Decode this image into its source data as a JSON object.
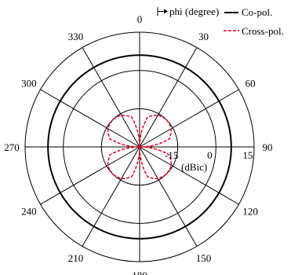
{
  "chart_data": {
    "type": "polar",
    "angle_unit_label": "phi (degree)",
    "radial_unit_label": "(dBic)",
    "radial_ticks": [
      "-15",
      "0",
      "15"
    ],
    "rlim": [
      -30,
      15
    ],
    "angle_ticks": [
      0,
      30,
      60,
      90,
      120,
      150,
      180,
      210,
      240,
      270,
      300,
      330
    ],
    "direction": "clockwise",
    "zero_at": "top",
    "grid": true,
    "legend_position": "top-right",
    "series": [
      {
        "name": "Co-pol.",
        "color": "#000000",
        "line_style": "solid",
        "phi": [
          0,
          30,
          60,
          90,
          120,
          150,
          180,
          210,
          240,
          270,
          300,
          330,
          360
        ],
        "gain": [
          6,
          6,
          6,
          6,
          6,
          6,
          6,
          6,
          6,
          6,
          6,
          6,
          6
        ]
      },
      {
        "name": "Cross-pol.",
        "color": "#e8001c",
        "line_style": "dashed",
        "phi": [
          0,
          15,
          30,
          45,
          60,
          75,
          90,
          105,
          120,
          135,
          150,
          165,
          180,
          195,
          210,
          225,
          240,
          255,
          270,
          285,
          300,
          315,
          330,
          345,
          360
        ],
        "gain": [
          -30,
          -17.9,
          -15.6,
          -15,
          -15.6,
          -17.9,
          -30,
          -17.9,
          -15.6,
          -15,
          -15.6,
          -17.9,
          -30,
          -17.9,
          -15.6,
          -15,
          -15.6,
          -17.9,
          -30,
          -17.9,
          -15.6,
          -15,
          -15.6,
          -17.9,
          -30
        ]
      }
    ]
  }
}
